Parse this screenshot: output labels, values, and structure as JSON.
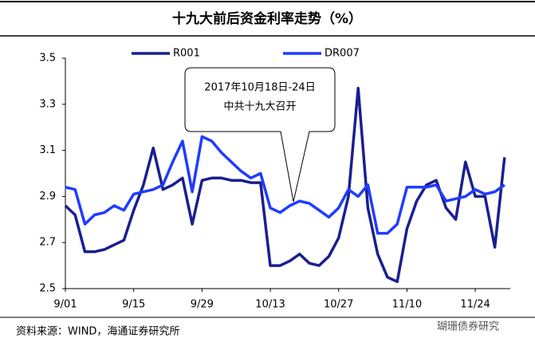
{
  "chart_data": {
    "type": "line",
    "title": "十九大前后资金利率走势（%）",
    "categories": [
      "9/01",
      null,
      null,
      null,
      null,
      null,
      null,
      "9/15",
      null,
      null,
      null,
      null,
      null,
      null,
      "9/29",
      null,
      null,
      null,
      null,
      null,
      null,
      "10/13",
      null,
      null,
      null,
      null,
      null,
      null,
      "10/27",
      null,
      null,
      null,
      null,
      null,
      null,
      "11/10",
      null,
      null,
      null,
      null,
      null,
      null,
      "11/24",
      null,
      null,
      null
    ],
    "series": [
      {
        "name": "R001",
        "color": "#1a1f8f",
        "values": [
          2.86,
          2.82,
          2.66,
          2.66,
          2.67,
          2.69,
          2.71,
          2.84,
          2.95,
          3.11,
          2.93,
          2.95,
          2.98,
          2.78,
          2.97,
          2.98,
          2.98,
          2.97,
          2.97,
          2.96,
          2.96,
          2.6,
          2.6,
          2.62,
          2.65,
          2.61,
          2.6,
          2.64,
          2.72,
          2.9,
          3.37,
          2.85,
          2.65,
          2.55,
          2.53,
          2.76,
          2.88,
          2.95,
          2.97,
          2.85,
          2.8,
          3.05,
          2.9,
          2.9,
          2.68,
          3.07
        ]
      },
      {
        "name": "DR007",
        "color": "#1f3cff",
        "values": [
          2.94,
          2.93,
          2.78,
          2.82,
          2.83,
          2.86,
          2.84,
          2.91,
          2.92,
          2.93,
          2.95,
          3.05,
          3.14,
          2.92,
          3.16,
          3.14,
          3.09,
          3.05,
          3.01,
          2.98,
          3.0,
          2.85,
          2.83,
          2.86,
          2.88,
          2.87,
          2.84,
          2.81,
          2.85,
          2.93,
          2.9,
          2.95,
          2.74,
          2.74,
          2.78,
          2.94,
          2.94,
          2.94,
          2.95,
          2.88,
          2.89,
          2.9,
          2.93,
          2.91,
          2.92,
          2.95
        ]
      }
    ],
    "ylim": [
      2.5,
      3.5
    ],
    "yticks": [
      2.5,
      2.7,
      2.9,
      3.1,
      3.3,
      3.5
    ],
    "annotation": [
      "2017年10月18日-24日",
      "中共十九大召开"
    ],
    "source": "资料来源：WIND，海通证券研究所",
    "watermark": "瑚珊债券研究"
  }
}
